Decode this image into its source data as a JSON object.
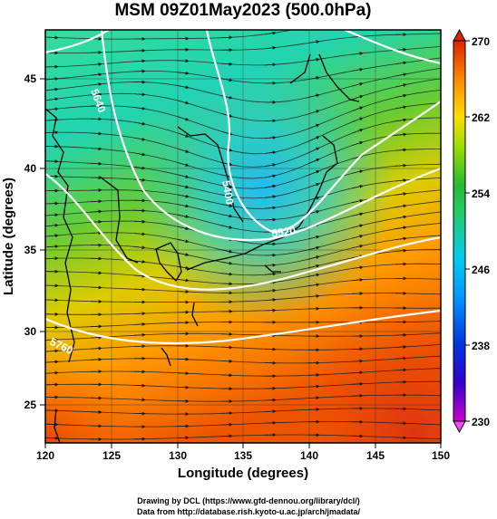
{
  "title": "MSM 09Z01May2023 (500.0hPa)",
  "map": {
    "xlabel": "Longitude (degrees)",
    "ylabel": "Latitude  (degrees)",
    "lon_ticks": [
      "120",
      "125",
      "130",
      "135",
      "140",
      "145",
      "150"
    ],
    "lat_ticks": [
      "25",
      "30",
      "35",
      "40",
      "45"
    ],
    "lon_range": [
      120,
      150
    ],
    "lat_range": [
      22.4,
      47.6
    ],
    "field": "temperature (K)",
    "colorbar": {
      "range": [
        230,
        270
      ],
      "ticks": [
        "230",
        "238",
        "246",
        "254",
        "262",
        "270"
      ],
      "stops": [
        "#cc00cc",
        "#0000cc",
        "#0066ff",
        "#00ccff",
        "#00dd99",
        "#22bb33",
        "#aadd00",
        "#ffdd00",
        "#ff7700",
        "#dd2200"
      ]
    },
    "contour_labels": [
      "5640",
      "5400",
      "5520",
      "5760"
    ],
    "colors": {
      "streamline": "#1a1a1a",
      "contour": "#ffffff",
      "coast": "#000000"
    }
  },
  "credits": {
    "line1": "Drawing by DCL (https://www.gfd-dennou.org/library/dcl/)",
    "line2": "Data from http://database.rish.kyoto-u.ac.jp/arch/jmadata/"
  }
}
